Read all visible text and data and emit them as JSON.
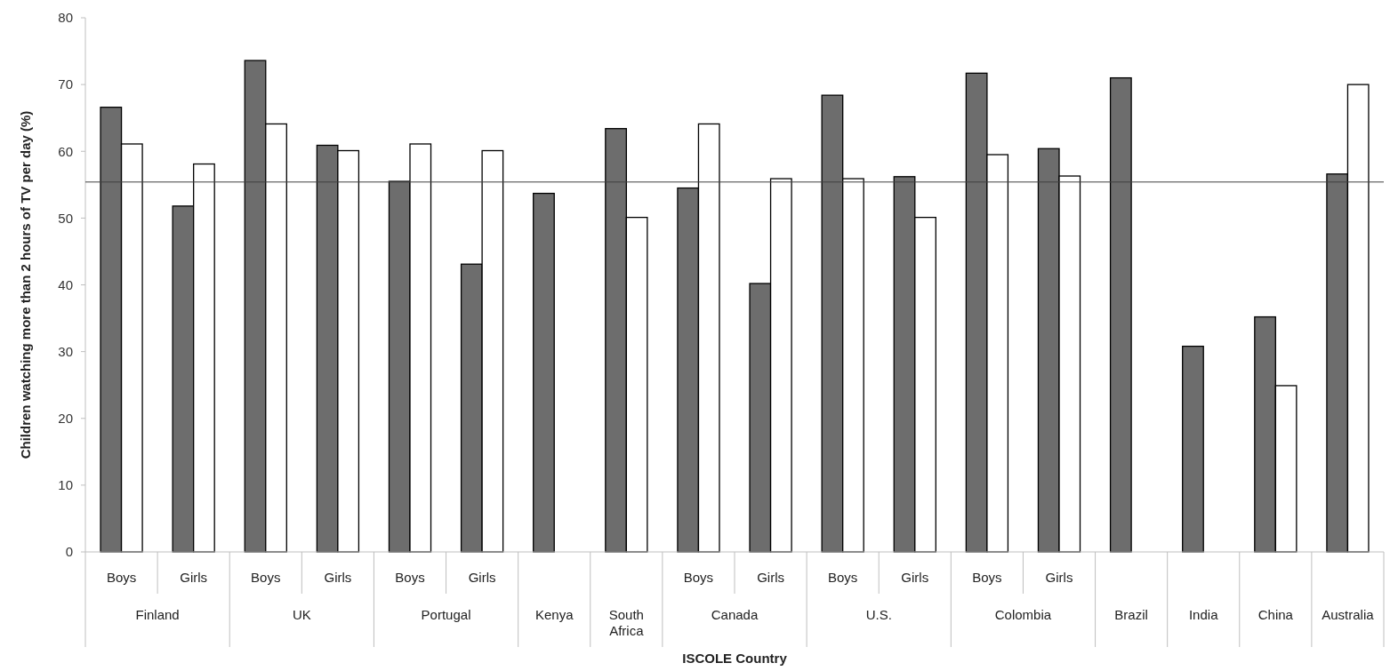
{
  "chart_data": {
    "type": "bar",
    "ylabel": "Children watching more than 2 hours of TV per day (%)",
    "xlabel": "ISCOLE Country",
    "categories": [
      "Boys",
      "Girls",
      "Boys",
      "Girls",
      "Boys",
      "Girls",
      null,
      null,
      "Boys",
      "Girls",
      "Boys",
      "Girls",
      "Boys",
      "Girls",
      null,
      null,
      null,
      null
    ],
    "annotations": [
      "Finland",
      "UK",
      "Portugal",
      "Kenya",
      "South Africa",
      "Canada",
      "U.S.",
      "Colombia",
      "Brazil",
      "India",
      "China",
      "Australia"
    ],
    "series": [
      {
        "color": "#6d6d6d",
        "values": [
          66.6,
          51.8,
          73.6,
          60.9,
          55.5,
          43.1,
          53.7,
          63.4,
          54.5,
          40.2,
          68.4,
          56.2,
          71.7,
          60.4,
          71.0,
          30.8,
          35.2,
          56.6
        ]
      },
      {
        "color": "#ffffff",
        "values": [
          61.1,
          58.1,
          64.1,
          60.1,
          61.1,
          60.1,
          null,
          50.1,
          64.1,
          55.9,
          55.9,
          50.1,
          59.5,
          56.3,
          null,
          null,
          24.9,
          70.0
        ]
      }
    ],
    "ylim": [
      0,
      80
    ],
    "yticks": [
      0,
      10,
      20,
      30,
      40,
      50,
      60,
      70,
      80
    ],
    "grid": false,
    "ref_lines": [
      {
        "axis": "y",
        "value": 55.4,
        "color": "#404040"
      }
    ]
  }
}
